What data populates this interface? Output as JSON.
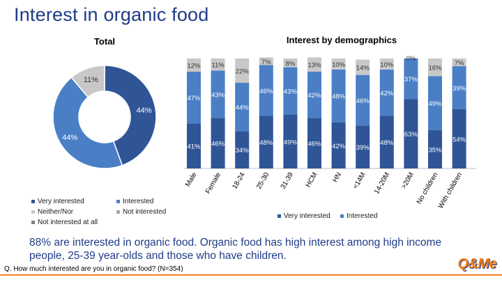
{
  "title": "Interest in organic food",
  "donut_title": "Total",
  "bar_title": "Interest by demographics",
  "colors": {
    "very": "#2f5597",
    "interested": "#4a7fc6",
    "neither": "#c8c8c8",
    "not": "#a6a6a6",
    "not_at_all": "#7f7f7f"
  },
  "chart_data": [
    {
      "type": "pie",
      "title": "Total",
      "labels": [
        "Very interested",
        "Interested",
        "Neither/Nor",
        "Not interested",
        "Not interested at all"
      ],
      "values": [
        44,
        44,
        11,
        0,
        0
      ],
      "value_labels": [
        "44%",
        "44%",
        "11%",
        "",
        ""
      ]
    },
    {
      "type": "bar",
      "stacked": true,
      "title": "Interest by demographics",
      "categories": [
        "Male",
        "Female",
        "18-24",
        "25-30",
        "31-39",
        "HCM",
        "HN",
        "<14M",
        "14-20M",
        ">20M",
        "No children",
        "With children"
      ],
      "series": [
        {
          "name": "Very interested",
          "values": [
            41,
            46,
            34,
            48,
            49,
            46,
            42,
            39,
            48,
            63,
            35,
            54
          ]
        },
        {
          "name": "Interested",
          "values": [
            47,
            43,
            44,
            46,
            43,
            42,
            48,
            46,
            42,
            37,
            49,
            39
          ]
        },
        {
          "name": "Neither/Nor",
          "values": [
            12,
            11,
            22,
            7,
            8,
            13,
            10,
            14,
            10,
            0,
            16,
            7
          ]
        }
      ],
      "ylim": [
        0,
        100
      ]
    }
  ],
  "donut_legend": [
    {
      "label": "Very interested",
      "color": "#2f5597"
    },
    {
      "label": "Interested",
      "color": "#4a7fc6"
    },
    {
      "label": "Neither/Nor",
      "color": "#c8c8c8"
    },
    {
      "label": "Not interested",
      "color": "#a6a6a6"
    },
    {
      "label": "Not interested at all",
      "color": "#7f7f7f"
    }
  ],
  "bar_legend": [
    {
      "label": "Very interested",
      "color": "#2f5597"
    },
    {
      "label": "Interested",
      "color": "#4a7fc6"
    }
  ],
  "summary": "88% are interested in organic food. Organic food has high interest among high income people, 25-39 year-olds and those who have children.",
  "footnote": "Q. How much interested are you in organic food? (N=354)",
  "logo": "Q&Me"
}
